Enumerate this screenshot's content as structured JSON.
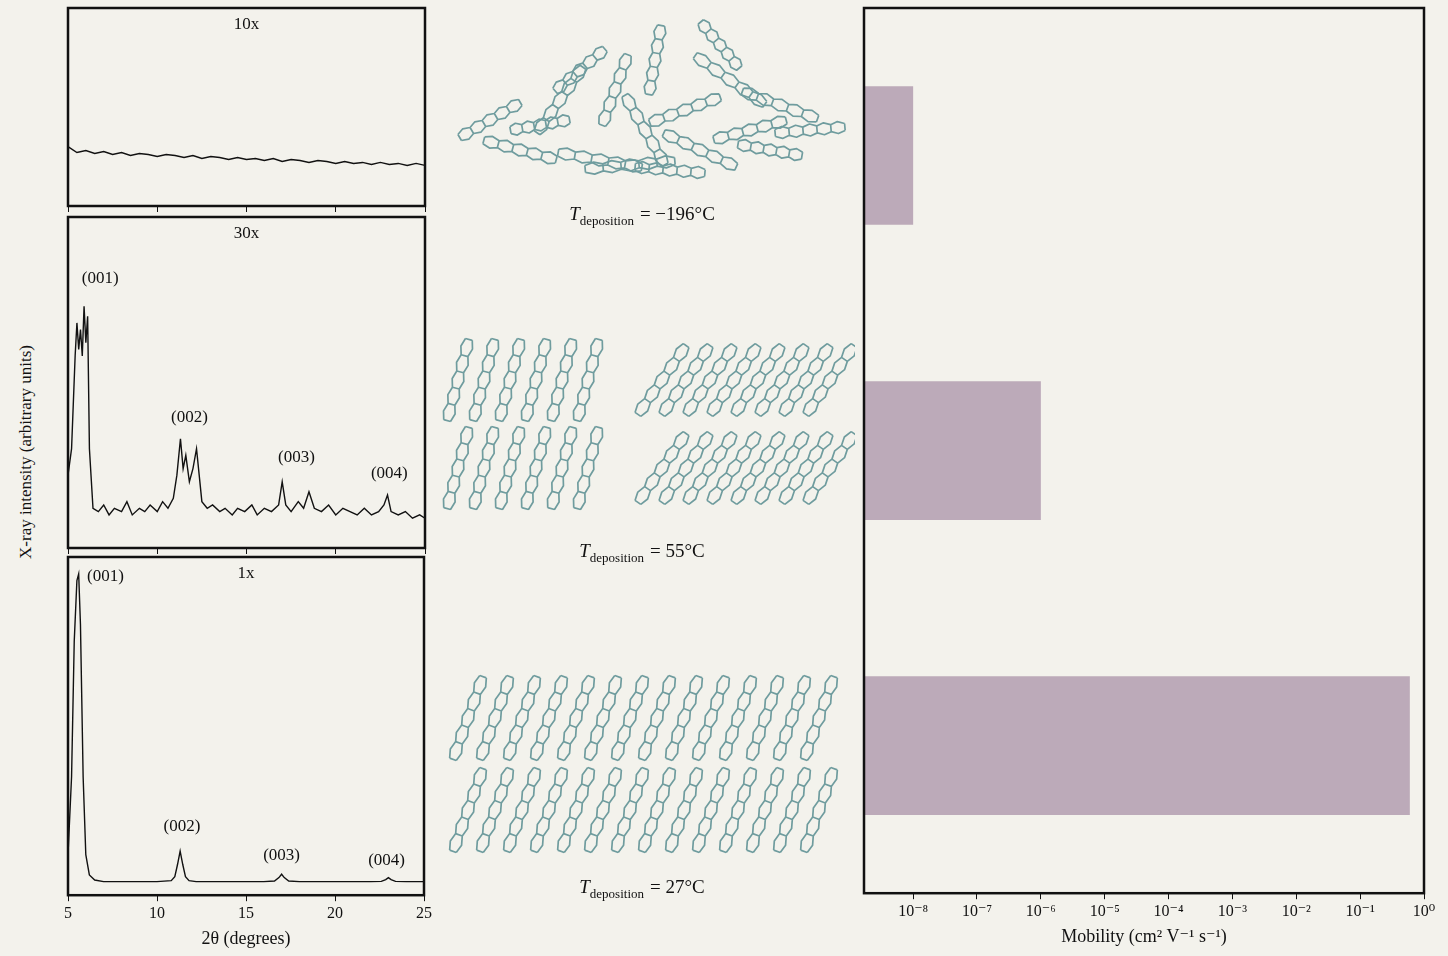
{
  "shared_ylabel": "X-ray intensity (arbitrary units)",
  "chart_data": [
    {
      "type": "line",
      "title": "10x",
      "x": [
        5,
        5.5,
        6,
        6.5,
        7,
        7.5,
        8,
        8.5,
        9,
        9.5,
        10,
        10.5,
        11,
        11.5,
        12,
        12.5,
        13,
        13.5,
        14,
        14.5,
        15,
        15.5,
        16,
        16.5,
        17,
        17.5,
        18,
        18.5,
        19,
        19.5,
        20,
        20.5,
        21,
        21.5,
        22,
        22.5,
        23,
        23.5,
        24,
        24.5,
        25
      ],
      "values": [
        30,
        27,
        28,
        26.5,
        27.5,
        26,
        27,
        25.5,
        26.5,
        26,
        25,
        26,
        25.5,
        24.5,
        25.5,
        24,
        25,
        24.5,
        23.5,
        24.5,
        23.5,
        24,
        23,
        24,
        22.5,
        23.5,
        23,
        22,
        23,
        22.5,
        21.5,
        22.5,
        21.5,
        22,
        21,
        22,
        21,
        21.5,
        20.5,
        21.5,
        20.5
      ],
      "color": "#111111",
      "xlim": [
        5,
        25
      ],
      "xticks": [
        5,
        10,
        15,
        20,
        25
      ],
      "ylim": [
        0,
        100
      ],
      "grid": false,
      "tick_labels": false
    },
    {
      "type": "line",
      "title": "30x",
      "x": [
        5.0,
        5.2,
        5.4,
        5.5,
        5.6,
        5.7,
        5.8,
        5.9,
        6.0,
        6.1,
        6.2,
        6.4,
        6.7,
        7.0,
        7.3,
        7.6,
        8.0,
        8.3,
        8.6,
        9.0,
        9.3,
        9.6,
        10.0,
        10.3,
        10.6,
        10.9,
        11.1,
        11.3,
        11.45,
        11.6,
        11.8,
        12.0,
        12.2,
        12.35,
        12.5,
        12.8,
        13.1,
        13.5,
        13.8,
        14.2,
        14.5,
        14.9,
        15.3,
        15.6,
        16.0,
        16.4,
        16.8,
        17.0,
        17.2,
        17.5,
        17.9,
        18.2,
        18.5,
        18.8,
        19.2,
        19.6,
        20.0,
        20.4,
        20.8,
        21.2,
        21.6,
        22.0,
        22.4,
        22.7,
        22.9,
        23.1,
        23.5,
        23.9,
        24.3,
        24.7,
        25.0
      ],
      "values": [
        22,
        30,
        58,
        68,
        60,
        66,
        58,
        73,
        62,
        70,
        30,
        12,
        11,
        13,
        10,
        12,
        11,
        14,
        10,
        12,
        11,
        13,
        11,
        14,
        12,
        15,
        22,
        33,
        24,
        28,
        20,
        24,
        30,
        22,
        14,
        12,
        13,
        11,
        12,
        10,
        12,
        11,
        13,
        10,
        12,
        11,
        13,
        20,
        13,
        11,
        14,
        12,
        17,
        12,
        11,
        13,
        10,
        12,
        11,
        10,
        12,
        10,
        11,
        13,
        16,
        11,
        10,
        11,
        9,
        10,
        9
      ],
      "color": "#111111",
      "xlim": [
        5,
        25
      ],
      "xticks": [
        5,
        10,
        15,
        20,
        25
      ],
      "ylim": [
        0,
        100
      ],
      "grid": false,
      "tick_labels": false,
      "annotations": [
        {
          "text": "(001)",
          "x": 6.8,
          "y": 80
        },
        {
          "text": "(002)",
          "x": 11.8,
          "y": 38
        },
        {
          "text": "(003)",
          "x": 17.8,
          "y": 26
        },
        {
          "text": "(004)",
          "x": 23.0,
          "y": 21
        }
      ]
    },
    {
      "type": "line",
      "title": "1x",
      "xlabel": "2θ (degrees)",
      "x": [
        5.0,
        5.2,
        5.35,
        5.5,
        5.6,
        5.7,
        5.85,
        6.0,
        6.2,
        6.5,
        7.0,
        8.0,
        9.0,
        10.0,
        10.8,
        11.0,
        11.15,
        11.3,
        11.45,
        11.6,
        11.8,
        12.2,
        13.0,
        14.0,
        15.0,
        16.0,
        16.6,
        16.85,
        17.0,
        17.15,
        17.4,
        18.0,
        19.0,
        20.0,
        21.0,
        22.0,
        22.6,
        22.85,
        23.0,
        23.15,
        23.4,
        24.0,
        25.0
      ],
      "values": [
        12,
        35,
        75,
        93,
        95,
        80,
        35,
        12,
        6,
        4.5,
        4,
        4,
        4,
        4,
        4.3,
        5.5,
        9,
        13,
        9,
        5.5,
        4.3,
        4,
        4,
        4,
        4,
        4,
        4.2,
        5.2,
        6.2,
        5.2,
        4.2,
        4,
        4,
        4,
        4,
        4,
        4.1,
        4.6,
        5.2,
        4.6,
        4.1,
        4,
        4
      ],
      "color": "#111111",
      "xlim": [
        5,
        25
      ],
      "xticks": [
        5,
        10,
        15,
        20,
        25
      ],
      "ylim": [
        0,
        100
      ],
      "grid": false,
      "tick_labels": "x",
      "annotations": [
        {
          "text": "(001)",
          "x": 7.1,
          "y": 93
        },
        {
          "text": "(002)",
          "x": 11.4,
          "y": 19
        },
        {
          "text": "(003)",
          "x": 17.0,
          "y": 10.5
        },
        {
          "text": "(004)",
          "x": 22.9,
          "y": 9
        }
      ]
    },
    {
      "type": "bar",
      "orientation": "horizontal",
      "log": "x",
      "categories": [
        null,
        null,
        null
      ],
      "values": [
        1e-08,
        1e-06,
        0.6
      ],
      "color": "#bcaab9",
      "xlim": [
        1.7e-09,
        1
      ],
      "xticks": [
        {
          "value": 1e-08,
          "label": "10⁻⁸"
        },
        {
          "value": 1e-07,
          "label": "10⁻⁷"
        },
        {
          "value": 1e-06,
          "label": "10⁻⁶"
        },
        {
          "value": 1e-05,
          "label": "10⁻⁵"
        },
        {
          "value": 0.0001,
          "label": "10⁻⁴"
        },
        {
          "value": 0.001,
          "label": "10⁻³"
        },
        {
          "value": 0.01,
          "label": "10⁻²"
        },
        {
          "value": 0.1,
          "label": "10⁻¹"
        },
        {
          "value": 1,
          "label": "10⁰"
        }
      ],
      "xlabel": "Mobility (cm² V⁻¹ s⁻¹)",
      "grid": false,
      "tick_labels": "x"
    }
  ],
  "diagram": {
    "structures": [
      {
        "symbol": "T",
        "subscript": "deposition",
        "text": "= −196°C"
      },
      {
        "symbol": "T",
        "subscript": "deposition",
        "text": "= 55°C"
      },
      {
        "symbol": "T",
        "subscript": "deposition",
        "text": "= 27°C"
      }
    ]
  }
}
